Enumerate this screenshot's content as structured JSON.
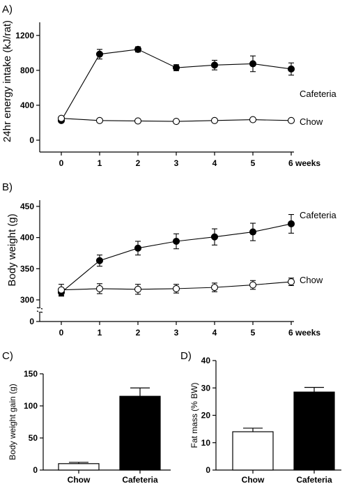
{
  "chart_data": [
    {
      "panel": "A)",
      "type": "line",
      "ylabel": "24hr energy intake (kJ/rat)",
      "x": [
        0,
        1,
        2,
        3,
        4,
        5,
        6
      ],
      "x_tick_labels": [
        "0",
        "1",
        "2",
        "3",
        "4",
        "5",
        "6"
      ],
      "x_unit": "weeks",
      "ylim": [
        0,
        1350
      ],
      "y_ticks": [
        0,
        400,
        800,
        1200
      ],
      "series": [
        {
          "name": "Cafeteria",
          "marker": "filled",
          "values": [
            225,
            985,
            1040,
            830,
            860,
            875,
            815
          ],
          "errors": [
            15,
            55,
            30,
            35,
            55,
            90,
            70
          ]
        },
        {
          "name": "Chow",
          "marker": "open",
          "values": [
            250,
            225,
            220,
            215,
            225,
            235,
            225
          ],
          "errors": [
            10,
            10,
            10,
            10,
            10,
            10,
            10
          ]
        }
      ]
    },
    {
      "panel": "B)",
      "type": "line",
      "ylabel": "Body weight (g)",
      "x": [
        0,
        1,
        2,
        3,
        4,
        5,
        6
      ],
      "x_tick_labels": [
        "0",
        "1",
        "2",
        "3",
        "4",
        "5",
        "6"
      ],
      "x_unit": "weeks",
      "ylim": [
        300,
        460
      ],
      "y_ticks": [
        300,
        350,
        400,
        450
      ],
      "y_break_tick": "0",
      "series": [
        {
          "name": "Cafeteria",
          "marker": "filled",
          "values": [
            312,
            363,
            383,
            394,
            401,
            409,
            422
          ],
          "errors": [
            6,
            9,
            11,
            12,
            13,
            14,
            15
          ]
        },
        {
          "name": "Chow",
          "marker": "open",
          "values": [
            316,
            318,
            317,
            318,
            320,
            324,
            329
          ],
          "errors": [
            9,
            8,
            8,
            7,
            7,
            7,
            6
          ]
        }
      ]
    },
    {
      "panel": "C)",
      "type": "bar",
      "ylabel": "Body weight gain (g)",
      "categories": [
        "Chow",
        "Cafeteria"
      ],
      "values": [
        10,
        115
      ],
      "errors": [
        2,
        13
      ],
      "ylim": [
        0,
        150
      ],
      "y_ticks": [
        0,
        50,
        100,
        150
      ]
    },
    {
      "panel": "D)",
      "type": "bar",
      "ylabel": "Fat mass (% BW)",
      "categories": [
        "Chow",
        "Cafeteria"
      ],
      "values": [
        14,
        28.5
      ],
      "errors": [
        1.3,
        1.7
      ],
      "ylim": [
        0,
        40
      ],
      "y_ticks": [
        0,
        10,
        20,
        30,
        40
      ]
    }
  ]
}
